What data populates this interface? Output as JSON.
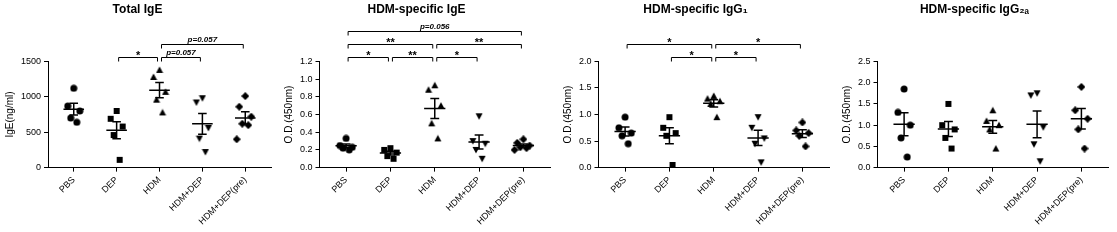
{
  "chart_data": [
    {
      "type": "scatter",
      "title": "Total IgE",
      "y_label": "IgE(ng/ml)",
      "categories": [
        "PBS",
        "DEP",
        "HDM",
        "HDM+DEP",
        "HDM+DEP(pre)"
      ],
      "markers": [
        "circle",
        "square",
        "triangle",
        "triangle_down",
        "diamond"
      ],
      "color": "#000000",
      "values": [
        [
          1120,
          870,
          800,
          700,
          640
        ],
        [
          800,
          690,
          580,
          460,
          110
        ],
        [
          1380,
          1280,
          1070,
          960,
          780
        ],
        [
          980,
          920,
          560,
          410,
          220
        ],
        [
          1010,
          860,
          720,
          620,
          600,
          400
        ]
      ],
      "means": [
        826,
        528,
        1094,
        618,
        702
      ],
      "errors": [
        84,
        119,
        108,
        146,
        87
      ],
      "ylim": [
        0,
        1500
      ],
      "yticks": [
        0,
        500,
        1000,
        1500
      ],
      "grid": false,
      "brackets": [
        {
          "between": [
            "DEP",
            "HDM"
          ],
          "text": "*"
        },
        {
          "between": [
            "HDM",
            "HDM+DEP"
          ],
          "text": "p=0.057"
        },
        {
          "between": [
            "HDM",
            "HDM+DEP(pre)"
          ],
          "text": "p=0.057"
        }
      ]
    },
    {
      "type": "scatter",
      "title": "HDM-specific IgE",
      "y_label": "O.D.(450nm)",
      "categories": [
        "PBS",
        "DEP",
        "HDM",
        "HDM+DEP",
        "HDM+DEP(pre)"
      ],
      "markers": [
        "circle",
        "square",
        "triangle",
        "triangle_down",
        "diamond"
      ],
      "color": "#000000",
      "values": [
        [
          0.33,
          0.25,
          0.23,
          0.22,
          0.2
        ],
        [
          0.22,
          0.2,
          0.17,
          0.13,
          0.1
        ],
        [
          0.93,
          0.88,
          0.7,
          0.5,
          0.33
        ],
        [
          0.58,
          0.3,
          0.27,
          0.2,
          0.1
        ],
        [
          0.32,
          0.28,
          0.25,
          0.23,
          0.22,
          0.2
        ]
      ],
      "means": [
        0.246,
        0.164,
        0.668,
        0.29,
        0.25
      ],
      "errors": [
        0.022,
        0.022,
        0.113,
        0.08,
        0.018
      ],
      "ylim": [
        0,
        1.2
      ],
      "yticks": [
        {
          "value": 0,
          "label": "0.0"
        },
        0.2,
        0.4,
        0.6,
        0.8,
        {
          "value": 1,
          "label": "1.0"
        },
        1.2
      ],
      "grid": false,
      "brackets": [
        {
          "between": [
            "PBS",
            "DEP"
          ],
          "text": "*"
        },
        {
          "between": [
            "DEP",
            "HDM"
          ],
          "text": "**"
        },
        {
          "between": [
            "HDM",
            "HDM+DEP"
          ],
          "text": "*"
        },
        {
          "between": [
            "PBS",
            "HDM"
          ],
          "text": "**"
        },
        {
          "between": [
            "HDM",
            "HDM+DEP(pre)"
          ],
          "text": "**"
        },
        {
          "between": [
            "PBS",
            "HDM+DEP(pre)"
          ],
          "text": "p=0.056"
        }
      ]
    },
    {
      "type": "scatter",
      "title": "HDM-specific IgG₁",
      "y_label": "O.D.(450nm)",
      "categories": [
        "PBS",
        "DEP",
        "HDM",
        "HDM+DEP",
        "HDM+DEP(pre)"
      ],
      "markers": [
        "circle",
        "square",
        "triangle",
        "triangle_down",
        "diamond"
      ],
      "color": "#000000",
      "values": [
        [
          0.95,
          0.75,
          0.65,
          0.6,
          0.45
        ],
        [
          0.95,
          0.75,
          0.65,
          0.6,
          0.05
        ],
        [
          1.35,
          1.3,
          1.25,
          1.2,
          0.95
        ],
        [
          0.95,
          0.75,
          0.55,
          0.45,
          0.1
        ],
        [
          0.85,
          0.7,
          0.65,
          0.6,
          0.4
        ]
      ],
      "means": [
        0.68,
        0.6,
        1.21,
        0.56,
        0.64
      ],
      "errors": [
        0.083,
        0.15,
        0.07,
        0.144,
        0.073
      ],
      "ylim": [
        0,
        2
      ],
      "yticks": [
        {
          "value": 0,
          "label": "0.0"
        },
        0.5,
        {
          "value": 1,
          "label": "1.0"
        },
        1.5,
        {
          "value": 2,
          "label": "2.0"
        }
      ],
      "grid": false,
      "brackets": [
        {
          "between": [
            "PBS",
            "HDM"
          ],
          "text": "*"
        },
        {
          "between": [
            "DEP",
            "HDM"
          ],
          "text": "*"
        },
        {
          "between": [
            "HDM",
            "HDM+DEP"
          ],
          "text": "*"
        },
        {
          "between": [
            "HDM",
            "HDM+DEP(pre)"
          ],
          "text": "*"
        }
      ]
    },
    {
      "type": "scatter",
      "title": "HDM-specific IgG₂ₐ",
      "y_label": "O.D.(450nm)",
      "categories": [
        "PBS",
        "DEP",
        "HDM",
        "HDM+DEP",
        "HDM+DEP(pre)"
      ],
      "markers": [
        "circle",
        "square",
        "triangle",
        "triangle_down",
        "diamond"
      ],
      "color": "#000000",
      "values": [
        [
          1.85,
          1.3,
          1.0,
          0.7,
          0.25
        ],
        [
          1.5,
          1.0,
          0.9,
          0.7,
          0.45
        ],
        [
          1.35,
          1.1,
          1.0,
          0.9,
          0.45
        ],
        [
          1.75,
          1.7,
          0.95,
          0.55,
          0.15
        ],
        [
          1.9,
          1.35,
          1.15,
          0.9,
          0.45
        ]
      ],
      "means": [
        1.02,
        0.91,
        0.96,
        1.02,
        1.15
      ],
      "errors": [
        0.27,
        0.175,
        0.148,
        0.314,
        0.24
      ],
      "ylim": [
        0,
        2.5
      ],
      "yticks": [
        {
          "value": 0,
          "label": "0.0"
        },
        0.5,
        {
          "value": 1,
          "label": "1.0"
        },
        1.5,
        {
          "value": 2,
          "label": "2.0"
        },
        2.5
      ],
      "grid": false,
      "brackets": []
    }
  ]
}
